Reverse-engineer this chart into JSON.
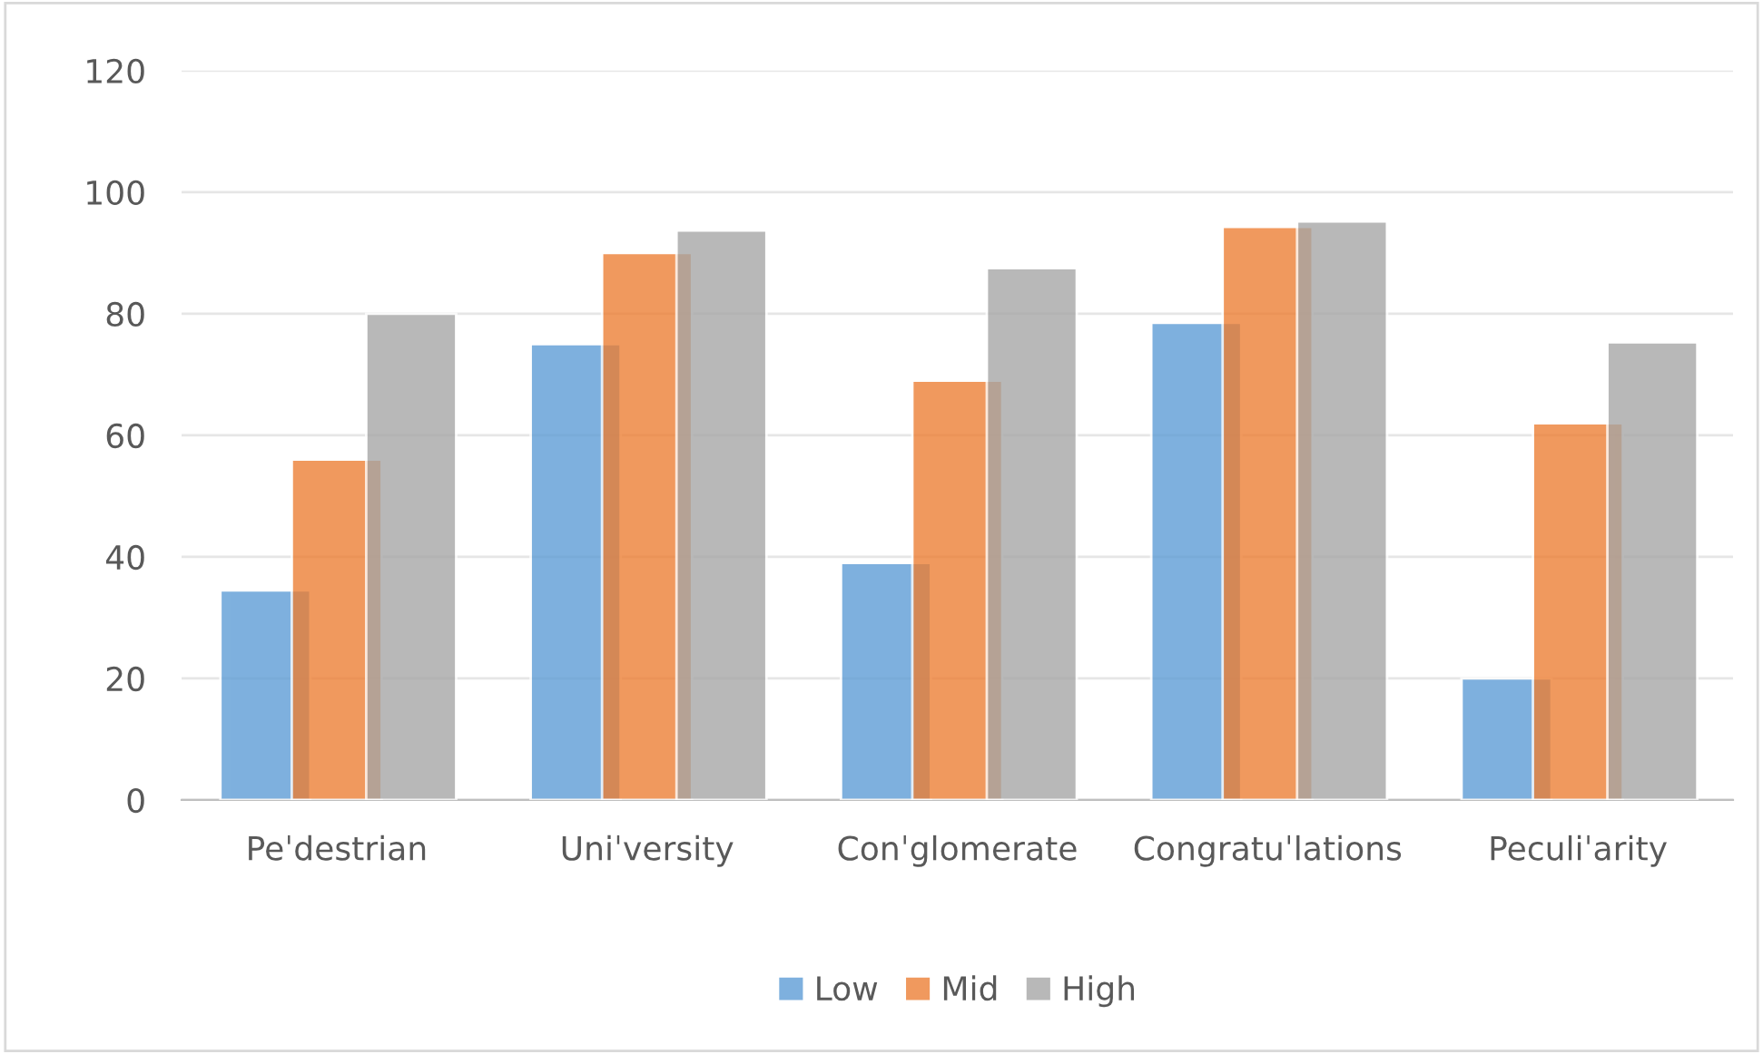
{
  "chart_data": {
    "type": "bar",
    "categories": [
      "Peˈdestrian",
      "Uniˈversity",
      "Conˈglomerate",
      "Congratuˈlations",
      "Peculiˈarity"
    ],
    "series": [
      {
        "name": "Low",
        "color": "#5b9bd5",
        "values": [
          34.5,
          75,
          39,
          78.5,
          20
        ]
      },
      {
        "name": "Mid",
        "color": "#ed7d31",
        "values": [
          56,
          90,
          69,
          94.3,
          62
        ]
      },
      {
        "name": "High",
        "color": "#a5a5a5",
        "values": [
          80,
          93.7,
          87.5,
          95.2,
          75.3
        ]
      }
    ],
    "ylim": [
      0,
      120
    ],
    "yticks": [
      0,
      20,
      40,
      60,
      80,
      100,
      120
    ],
    "grid": "y",
    "legend": "bottom"
  }
}
